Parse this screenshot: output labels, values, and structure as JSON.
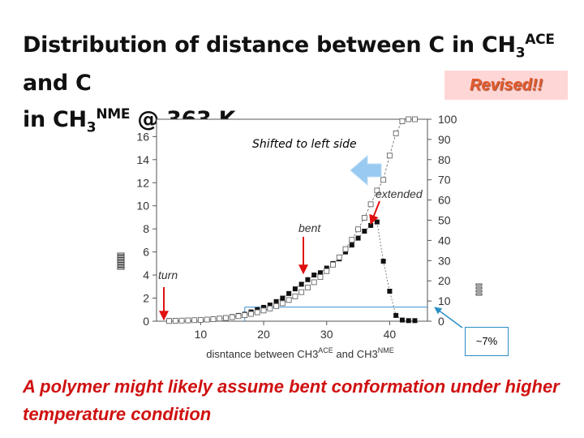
{
  "title": {
    "line1_pre": "Distribution of distance between C in CH",
    "line1_sub": "3",
    "line1_sup": "ACE",
    "line1_post": " and C",
    "line2_pre": "in CH",
    "line2_sub": "3",
    "line2_sup": "NME",
    "line2_post": " @ 363 K"
  },
  "revised_badge": "Revised!!",
  "shifted_note": "Shifted to left side",
  "callout_text": "~7%",
  "conclusion": "A polymer might likely assume bent conformation under higher temperature condition",
  "colors": {
    "title": "#111111",
    "conclusion": "#d01010",
    "arrow_red": "#e01010",
    "arrow_blue": "#8fc5f0",
    "callout_border": "#2a8fc4"
  },
  "chart_data": {
    "type": "scatter",
    "xlabel_pre": "disntance between CH3",
    "xlabel_sup1": "ACE",
    "xlabel_mid": " and CH3",
    "xlabel_sup2": "NME",
    "xlim": [
      3,
      46
    ],
    "ylim_left": [
      0,
      17.5
    ],
    "ylim_right": [
      0,
      100
    ],
    "x_ticks": [
      10,
      20,
      30,
      40
    ],
    "y_left_ticks": [
      0,
      2,
      4,
      6,
      8,
      10,
      12,
      14,
      16
    ],
    "y_right_ticks": [
      0,
      10,
      20,
      30,
      40,
      50,
      60,
      70,
      80,
      90,
      100
    ],
    "series": [
      {
        "axis": "left",
        "marker": "filled-square",
        "x": [
          5,
          6,
          7,
          8,
          9,
          10,
          11,
          12,
          13,
          14,
          15,
          16,
          17,
          18,
          19,
          20,
          21,
          22,
          23,
          24,
          25,
          26,
          27,
          28,
          29,
          30,
          31,
          32,
          33,
          34,
          35,
          36,
          37,
          38,
          39,
          40,
          41,
          42,
          43,
          44
        ],
        "y": [
          0.05,
          0.05,
          0.05,
          0.05,
          0.1,
          0.1,
          0.15,
          0.2,
          0.25,
          0.3,
          0.4,
          0.5,
          0.6,
          0.8,
          1.0,
          1.2,
          1.4,
          1.7,
          2.0,
          2.4,
          2.8,
          3.2,
          3.6,
          4.0,
          4.2,
          4.6,
          5.0,
          5.4,
          6.0,
          6.6,
          7.2,
          7.8,
          8.3,
          8.6,
          5.2,
          2.6,
          0.5,
          0.1,
          0.05,
          0.05
        ]
      },
      {
        "axis": "right",
        "marker": "open-square",
        "x": [
          5,
          6,
          7,
          8,
          9,
          10,
          11,
          12,
          13,
          14,
          15,
          16,
          17,
          18,
          19,
          20,
          21,
          22,
          23,
          24,
          25,
          26,
          27,
          28,
          29,
          30,
          31,
          32,
          33,
          34,
          35,
          36,
          37,
          38,
          39,
          40,
          41,
          42,
          43,
          44
        ],
        "y": [
          0.1,
          0.2,
          0.3,
          0.4,
          0.5,
          0.6,
          0.8,
          1.0,
          1.3,
          1.6,
          2.0,
          2.5,
          3.0,
          3.6,
          4.4,
          5.3,
          6.3,
          7.5,
          8.9,
          10.5,
          12.3,
          14.4,
          16.7,
          19.3,
          21.9,
          24.8,
          28.0,
          31.6,
          35.7,
          40.3,
          45.5,
          51.2,
          57.9,
          64.7,
          70,
          82,
          93,
          99,
          100,
          100
        ]
      }
    ],
    "annotations": [
      {
        "label": "turn",
        "x": 7
      },
      {
        "label": "bent",
        "x": 26
      },
      {
        "label": "extended",
        "x": 37
      }
    ],
    "reference_level_right": 7
  }
}
